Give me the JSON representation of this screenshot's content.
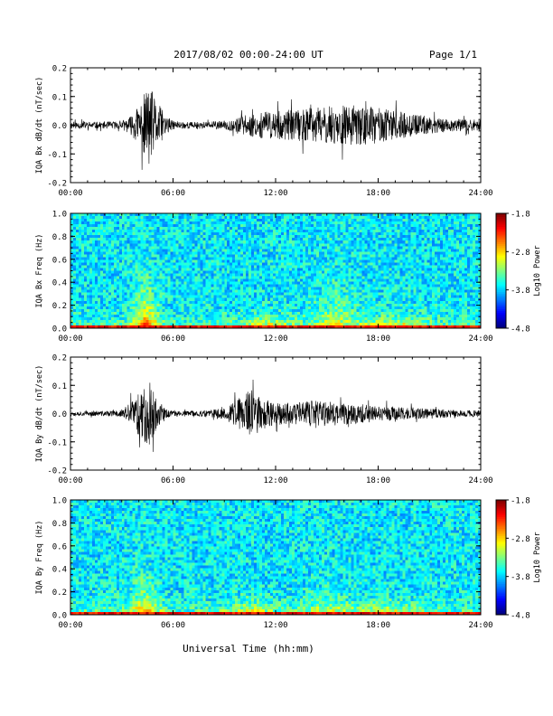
{
  "header": {
    "date_range": "2017/08/02  00:00-24:00 UT",
    "page": "Page 1/1"
  },
  "footer": {
    "xlabel": "Universal Time (hh:mm)"
  },
  "chart_data": [
    {
      "type": "line",
      "ylabel": "IQA Bx dB/dt (nT/sec)",
      "xlim": [
        0,
        24
      ],
      "ylim": [
        -0.2,
        0.2
      ],
      "x_ticks": [
        "00:00",
        "06:00",
        "12:00",
        "18:00",
        "24:00"
      ],
      "y_ticks": [
        "0.2",
        "0.1",
        "0.0",
        "-0.1",
        "-0.2"
      ],
      "envelope": {
        "hours": [
          0,
          1,
          2,
          3,
          3.5,
          4,
          4.3,
          4.6,
          5,
          5.5,
          6,
          7,
          8,
          9,
          10,
          10.5,
          11,
          12,
          13,
          14,
          15,
          16,
          17,
          18,
          19,
          20,
          21,
          22,
          23,
          24
        ],
        "amplitude": [
          0.012,
          0.012,
          0.012,
          0.015,
          0.03,
          0.07,
          0.11,
          0.14,
          0.09,
          0.04,
          0.015,
          0.012,
          0.012,
          0.015,
          0.03,
          0.04,
          0.045,
          0.05,
          0.055,
          0.06,
          0.065,
          0.07,
          0.07,
          0.06,
          0.05,
          0.04,
          0.03,
          0.025,
          0.02,
          0.02
        ]
      }
    },
    {
      "type": "heatmap",
      "ylabel": "IQA Bx Freq (Hz)",
      "xlim": [
        0,
        24
      ],
      "ylim": [
        0,
        1
      ],
      "x_ticks": [
        "00:00",
        "06:00",
        "12:00",
        "18:00",
        "24:00"
      ],
      "y_ticks": [
        "1.0",
        "0.8",
        "0.6",
        "0.4",
        "0.2",
        "0.0"
      ],
      "colorbar": {
        "label": "Log10 Power",
        "range": [
          -4.8,
          -1.8
        ],
        "ticks": [
          "-1.8",
          "-2.8",
          "-3.8",
          "-4.8"
        ]
      }
    },
    {
      "type": "line",
      "ylabel": "IQA By dB/dt (nT/sec)",
      "xlim": [
        0,
        24
      ],
      "ylim": [
        -0.2,
        0.2
      ],
      "x_ticks": [
        "00:00",
        "06:00",
        "12:00",
        "18:00",
        "24:00"
      ],
      "y_ticks": [
        "0.2",
        "0.1",
        "0.0",
        "-0.1",
        "-0.2"
      ],
      "envelope": {
        "hours": [
          0,
          1,
          2,
          3,
          3.5,
          4,
          4.3,
          4.6,
          5,
          5.5,
          6,
          7,
          8,
          9,
          10,
          10.5,
          11,
          12,
          13,
          14,
          15,
          16,
          17,
          18,
          19,
          20,
          21,
          22,
          23,
          24
        ],
        "amplitude": [
          0.008,
          0.008,
          0.009,
          0.012,
          0.04,
          0.08,
          0.1,
          0.12,
          0.06,
          0.02,
          0.01,
          0.01,
          0.012,
          0.02,
          0.06,
          0.09,
          0.06,
          0.04,
          0.04,
          0.045,
          0.045,
          0.04,
          0.035,
          0.03,
          0.025,
          0.02,
          0.018,
          0.015,
          0.012,
          0.012
        ]
      }
    },
    {
      "type": "heatmap",
      "ylabel": "IQA By Freq (Hz)",
      "xlim": [
        0,
        24
      ],
      "ylim": [
        0,
        1
      ],
      "x_ticks": [
        "00:00",
        "06:00",
        "12:00",
        "18:00",
        "24:00"
      ],
      "y_ticks": [
        "1.0",
        "0.8",
        "0.6",
        "0.4",
        "0.2",
        "0.0"
      ],
      "colorbar": {
        "label": "Log10 Power",
        "range": [
          -4.8,
          -1.8
        ],
        "ticks": [
          "-1.8",
          "-2.8",
          "-3.8",
          "-4.8"
        ]
      }
    }
  ]
}
